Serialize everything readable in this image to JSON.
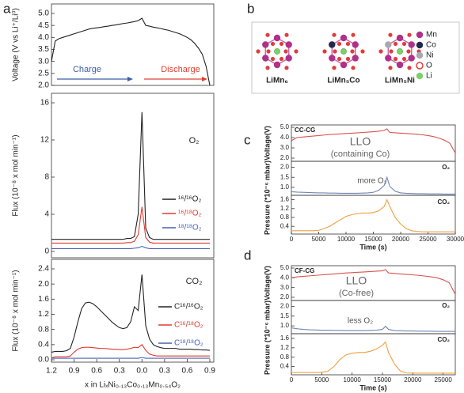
{
  "panel_labels": [
    "a",
    "b",
    "c",
    "d"
  ],
  "diagram": {
    "structures": [
      "LiMn₆",
      "LiMn₅Co",
      "LiMn₅Ni"
    ],
    "legend": [
      "Mn",
      "Co",
      "Ni",
      "O",
      "Li"
    ]
  },
  "chart_data": [
    {
      "type": "line",
      "ylabel": "Voltage (V vs Li⁺/Li⁰)",
      "color": "#222222",
      "values": [
        3.0,
        3.85,
        3.95,
        4.0,
        4.05,
        4.1,
        4.15,
        4.2,
        4.25,
        4.3,
        4.35,
        4.38,
        4.4,
        4.42,
        4.45,
        4.47,
        4.5,
        4.52,
        4.55,
        4.58,
        4.6,
        4.63,
        4.66,
        4.7,
        4.8,
        4.5,
        4.47,
        4.43,
        4.4,
        4.37,
        4.33,
        4.3,
        4.25,
        4.2,
        4.15,
        4.08,
        4.0,
        3.9,
        3.75,
        3.55,
        3.3,
        2.8,
        2.0
      ],
      "ylim": [
        2,
        5
      ],
      "yticks": [
        {
          "value": 5,
          "label": "5.0"
        },
        4.5,
        {
          "value": 4,
          "label": "4.0"
        },
        3.5,
        {
          "value": 3,
          "label": "3.0"
        },
        2.5,
        {
          "value": 2,
          "label": "2.0"
        }
      ],
      "annotations": [
        "Charge",
        "Discharge"
      ]
    },
    {
      "type": "line",
      "ylabel": "Flux (10⁻⁸ x mol min⁻¹)",
      "annotations": [
        "O₂"
      ],
      "series": [
        {
          "name": "¹⁶/¹⁶O₂",
          "color": "#222222",
          "values": [
            1.3,
            1.3,
            1.3,
            1.3,
            1.3,
            1.3,
            1.3,
            1.3,
            1.3,
            1.3,
            1.3,
            1.3,
            1.3,
            1.3,
            1.3,
            1.3,
            1.3,
            1.3,
            1.3,
            1.3,
            1.4,
            1.4,
            1.6,
            4,
            15,
            2.5,
            1.5,
            1.3,
            1.3,
            1.3,
            1.3,
            1.3,
            1.3,
            1.3,
            1.3,
            1.3,
            1.3,
            1.3,
            1.3,
            1.3,
            1.3,
            1.3,
            1.3
          ]
        },
        {
          "name": "¹⁶/¹⁸O₂",
          "color": "#e03a2e",
          "values": [
            0.9,
            0.9,
            0.9,
            0.9,
            0.9,
            0.9,
            0.9,
            0.9,
            0.9,
            0.9,
            0.9,
            0.9,
            0.9,
            0.9,
            0.9,
            0.9,
            0.9,
            0.9,
            0.9,
            0.9,
            0.95,
            0.95,
            1.1,
            1.8,
            4.8,
            1.5,
            1.0,
            0.9,
            0.9,
            0.9,
            0.9,
            0.9,
            0.9,
            0.9,
            0.9,
            0.9,
            0.9,
            0.9,
            0.9,
            0.9,
            0.9,
            0.9,
            0.9
          ]
        },
        {
          "name": "¹⁸/¹⁸O₂",
          "color": "#4a5fb5",
          "values": [
            0.3,
            0.3,
            0.3,
            0.3,
            0.3,
            0.3,
            0.3,
            0.3,
            0.3,
            0.3,
            0.3,
            0.3,
            0.3,
            0.3,
            0.3,
            0.3,
            0.3,
            0.3,
            0.3,
            0.3,
            0.3,
            0.3,
            0.35,
            0.4,
            0.55,
            0.4,
            0.3,
            0.3,
            0.3,
            0.3,
            0.3,
            0.3,
            0.3,
            0.3,
            0.3,
            0.3,
            0.3,
            0.3,
            0.3,
            0.3,
            0.3,
            0.3,
            0.3
          ]
        }
      ],
      "ylim": [
        0,
        16
      ],
      "yticks": [
        0,
        4,
        8,
        12,
        16
      ]
    },
    {
      "type": "line",
      "ylabel": "Flux (10⁻⁸ x mol min⁻¹)",
      "xlabel": "x in LiₓNi₀.₁₃Co₀.₁₃Mn₀.₅₄O₂",
      "annotations": [
        "CO₂"
      ],
      "categories": [
        "1.2",
        null,
        null,
        null,
        null,
        null,
        "0.9",
        null,
        null,
        null,
        null,
        null,
        "0.6",
        null,
        null,
        null,
        null,
        null,
        "0.3",
        null,
        null,
        null,
        null,
        null,
        "0.0",
        null,
        null,
        null,
        null,
        null,
        "0.3",
        null,
        null,
        null,
        null,
        null,
        "0.6",
        null,
        null,
        null,
        null,
        null,
        "0.9"
      ],
      "series": [
        {
          "name": "C¹⁶/¹⁶O₂",
          "color": "#222222",
          "values": [
            0.2,
            0.22,
            0.22,
            0.22,
            0.24,
            0.3,
            0.6,
            1.0,
            1.35,
            1.5,
            1.52,
            1.48,
            1.4,
            1.3,
            1.2,
            1.1,
            1.0,
            0.92,
            0.85,
            0.82,
            0.85,
            1.0,
            1.4,
            1.3,
            2.25,
            0.9,
            0.55,
            0.4,
            0.35,
            0.32,
            0.3,
            0.3,
            0.3,
            0.3,
            0.28,
            0.28,
            0.28,
            0.28,
            0.27,
            0.27,
            0.26,
            0.26,
            0.25
          ]
        },
        {
          "name": "C¹⁶/¹⁸O₂",
          "color": "#e03a2e",
          "values": [
            0.05,
            0.08,
            0.08,
            0.08,
            0.08,
            0.1,
            0.2,
            0.28,
            0.32,
            0.33,
            0.33,
            0.32,
            0.31,
            0.3,
            0.3,
            0.29,
            0.28,
            0.28,
            0.27,
            0.27,
            0.28,
            0.3,
            0.33,
            0.32,
            0.4,
            0.25,
            0.15,
            0.12,
            0.1,
            0.1,
            0.1,
            0.1,
            0.1,
            0.1,
            0.1,
            0.1,
            0.1,
            0.1,
            0.1,
            0.1,
            0.1,
            0.1,
            0.1
          ]
        },
        {
          "name": "C¹⁸/¹⁸O₂",
          "color": "#4a5fb5",
          "values": [
            0.04,
            0.04,
            0.04,
            0.04,
            0.04,
            0.04,
            0.04,
            0.04,
            0.04,
            0.04,
            0.04,
            0.04,
            0.04,
            0.04,
            0.04,
            0.04,
            0.04,
            0.04,
            0.04,
            0.04,
            0.04,
            0.04,
            0.04,
            0.04,
            0.06,
            0.04,
            0.04,
            0.04,
            0.04,
            0.04,
            0.04,
            0.04,
            0.04,
            0.04,
            0.04,
            0.04,
            0.04,
            0.04,
            0.04,
            0.04,
            0.04,
            0.04,
            0.04
          ]
        }
      ],
      "ylim": [
        0,
        2.4
      ],
      "yticks": [
        {
          "value": 0,
          "label": "0.0"
        },
        0.4,
        0.8,
        1.2,
        1.6,
        {
          "value": 2,
          "label": "2.0"
        },
        2.4
      ]
    },
    {
      "type": "line",
      "ylabel": "Voltage(V)",
      "annotations": [
        "CC-CG",
        "LLO",
        "(containing Co)"
      ],
      "color": "#d9534f",
      "x": [
        0,
        1000,
        2000,
        3000,
        4000,
        5000,
        6000,
        7000,
        8000,
        9000,
        10000,
        11000,
        12000,
        13000,
        14000,
        15000,
        16000,
        17000,
        17500,
        18000,
        19000,
        20000,
        21000,
        22000,
        23000,
        24000,
        25000,
        26000,
        27000,
        28000,
        29000,
        30000
      ],
      "values": [
        3.7,
        4.0,
        4.05,
        4.1,
        4.15,
        4.2,
        4.25,
        4.3,
        4.33,
        4.36,
        4.4,
        4.43,
        4.46,
        4.5,
        4.53,
        4.57,
        4.62,
        4.7,
        4.85,
        4.5,
        4.47,
        4.43,
        4.4,
        4.36,
        4.32,
        4.27,
        4.2,
        4.1,
        3.95,
        3.75,
        3.45,
        2.5
      ],
      "xlim": [
        0,
        30000
      ],
      "ylim": [
        2,
        5
      ],
      "yticks": [
        {
          "value": 5,
          "label": "5.0"
        },
        {
          "value": 4,
          "label": "4.0"
        },
        {
          "value": 3,
          "label": "3.0"
        },
        {
          "value": 2,
          "label": "2.0"
        }
      ]
    },
    {
      "type": "line",
      "ylabel": "Pressure (*10⁻⁶ mbar)",
      "annotations": [
        "O₂",
        "more O₂"
      ],
      "color": "#6f86b8",
      "x": [
        0,
        1000,
        2000,
        3000,
        4000,
        5000,
        6000,
        7000,
        8000,
        9000,
        10000,
        11000,
        12000,
        13000,
        14000,
        15000,
        16000,
        17000,
        17500,
        18000,
        19000,
        20000,
        21000,
        22000,
        23000,
        24000,
        25000,
        26000,
        27000,
        28000,
        29000,
        30000
      ],
      "values": [
        0.78,
        0.76,
        0.75,
        0.74,
        0.73,
        0.72,
        0.72,
        0.71,
        0.71,
        0.7,
        0.7,
        0.7,
        0.7,
        0.71,
        0.72,
        0.75,
        0.85,
        1.1,
        1.5,
        1.05,
        0.8,
        0.72,
        0.7,
        0.69,
        0.68,
        0.68,
        0.67,
        0.67,
        0.67,
        0.66,
        0.66,
        0.66
      ],
      "xlim": [
        0,
        30000
      ],
      "ylim": [
        0.6,
        2.3
      ],
      "yticks": [
        {
          "value": 2,
          "label": "2.0"
        },
        1.5,
        {
          "value": 1,
          "label": "1.0"
        }
      ]
    },
    {
      "type": "line",
      "xlabel": "Time (s)",
      "annotations": [
        "CO₂"
      ],
      "color": "#f0a040",
      "x": [
        0,
        1000,
        2000,
        3000,
        4000,
        5000,
        6000,
        7000,
        8000,
        9000,
        10000,
        11000,
        12000,
        13000,
        14000,
        15000,
        16000,
        17000,
        17500,
        18000,
        19000,
        20000,
        21000,
        22000,
        23000,
        24000,
        25000,
        26000,
        27000,
        28000,
        29000,
        30000
      ],
      "values": [
        0.2,
        0.2,
        0.2,
        0.2,
        0.2,
        0.22,
        0.3,
        0.4,
        0.55,
        0.7,
        0.85,
        0.92,
        0.97,
        1.0,
        1.0,
        1.02,
        1.1,
        1.3,
        1.6,
        1.3,
        0.8,
        0.5,
        0.3,
        0.2,
        0.17,
        0.15,
        0.15,
        0.15,
        0.15,
        0.15,
        0.15,
        0.15
      ],
      "xlim": [
        0,
        30000
      ],
      "ylim": [
        0.05,
        1.8
      ],
      "yticks": [
        0.4,
        0.8,
        1.2,
        1.6
      ],
      "xticks": [
        0,
        5000,
        10000,
        15000,
        20000,
        25000,
        30000
      ]
    },
    {
      "type": "line",
      "ylabel": "Voltage(V)",
      "annotations": [
        "CF-CG",
        "LLO",
        "(Co-free)"
      ],
      "color": "#d9534f",
      "x": [
        0,
        1000,
        2000,
        3000,
        4000,
        5000,
        6000,
        7000,
        8000,
        9000,
        10000,
        11000,
        12000,
        13000,
        14000,
        15000,
        15500,
        16000,
        17000,
        18000,
        19000,
        20000,
        21000,
        22000,
        23000,
        24000,
        25000,
        26000,
        27000
      ],
      "values": [
        4.0,
        4.1,
        4.15,
        4.2,
        4.25,
        4.3,
        4.35,
        4.4,
        4.45,
        4.5,
        4.53,
        4.57,
        4.6,
        4.64,
        4.68,
        4.72,
        4.85,
        4.5,
        4.45,
        4.4,
        4.35,
        4.3,
        4.25,
        4.18,
        4.1,
        4.0,
        3.8,
        3.5,
        2.3
      ],
      "xlim": [
        0,
        27000
      ],
      "ylim": [
        2,
        5
      ],
      "yticks": [
        {
          "value": 5,
          "label": "5.0"
        },
        {
          "value": 4,
          "label": "4.0"
        },
        {
          "value": 3,
          "label": "3.0"
        },
        {
          "value": 2,
          "label": "2.0"
        }
      ]
    },
    {
      "type": "line",
      "ylabel": "Pressure (*10⁻⁶ mbar)",
      "annotations": [
        "O₂",
        "less O₂"
      ],
      "color": "#6f86b8",
      "x": [
        0,
        1000,
        2000,
        3000,
        4000,
        5000,
        6000,
        7000,
        8000,
        9000,
        10000,
        11000,
        12000,
        13000,
        14000,
        15000,
        15500,
        16000,
        17000,
        18000,
        19000,
        20000,
        21000,
        22000,
        23000,
        24000,
        25000,
        26000,
        27000
      ],
      "values": [
        0.9,
        0.85,
        0.82,
        0.8,
        0.79,
        0.78,
        0.78,
        0.77,
        0.77,
        0.76,
        0.76,
        0.76,
        0.76,
        0.77,
        0.78,
        0.82,
        0.98,
        0.82,
        0.76,
        0.75,
        0.74,
        0.74,
        0.73,
        0.73,
        0.73,
        0.72,
        0.72,
        0.72,
        0.72
      ],
      "xlim": [
        0,
        27000
      ],
      "ylim": [
        0.6,
        2.3
      ],
      "yticks": [
        {
          "value": 2,
          "label": "2.0"
        },
        1.5,
        {
          "value": 1,
          "label": "1.0"
        }
      ]
    },
    {
      "type": "line",
      "xlabel": "Time (s)",
      "annotations": [
        "CO₂"
      ],
      "color": "#f0a040",
      "x": [
        0,
        1000,
        2000,
        3000,
        4000,
        5000,
        6000,
        7000,
        8000,
        9000,
        10000,
        11000,
        12000,
        13000,
        14000,
        15000,
        15500,
        16000,
        17000,
        18000,
        19000,
        20000,
        21000,
        22000,
        23000,
        24000,
        25000,
        26000,
        27000
      ],
      "values": [
        0.15,
        0.15,
        0.15,
        0.15,
        0.15,
        0.16,
        0.2,
        0.4,
        0.7,
        0.9,
        0.97,
        1.0,
        1.0,
        1.05,
        1.15,
        1.3,
        1.45,
        1.0,
        0.5,
        0.2,
        0.13,
        0.12,
        0.12,
        0.12,
        0.12,
        0.12,
        0.12,
        0.12,
        0.12
      ],
      "xlim": [
        0,
        27000
      ],
      "ylim": [
        0.05,
        1.8
      ],
      "yticks": [
        0.4,
        0.8,
        1.2,
        1.6
      ],
      "xticks": [
        0,
        5000,
        10000,
        15000,
        20000,
        25000
      ]
    }
  ]
}
